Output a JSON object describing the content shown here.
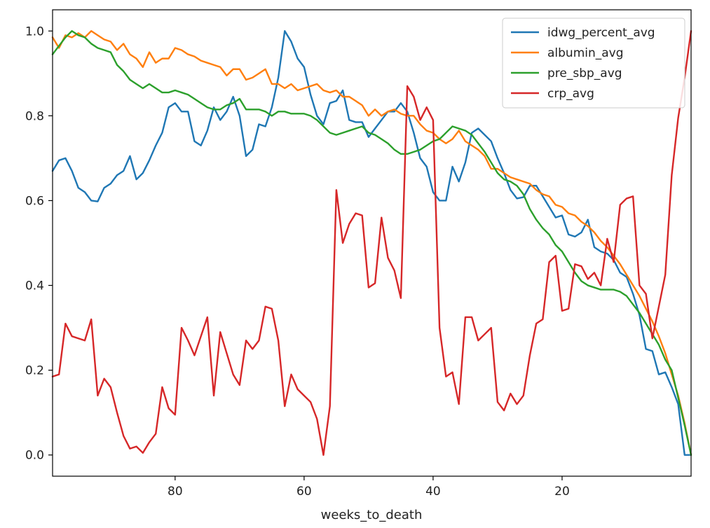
{
  "chart_data": {
    "type": "line",
    "title": "",
    "xlabel": "weeks_to_death",
    "ylabel": "",
    "xlim": [
      99,
      0
    ],
    "ylim": [
      -0.05,
      1.05
    ],
    "x_inverted": true,
    "xticks": [
      80,
      60,
      40,
      20
    ],
    "yticks": [
      0.0,
      0.2,
      0.4,
      0.6,
      0.8,
      1.0
    ],
    "xtick_labels": [
      "80",
      "60",
      "40",
      "20"
    ],
    "ytick_labels": [
      "0.0",
      "0.2",
      "0.4",
      "0.6",
      "0.8",
      "1.0"
    ],
    "grid": false,
    "legend_position": "upper right",
    "x": [
      99,
      98,
      97,
      96,
      95,
      94,
      93,
      92,
      91,
      90,
      89,
      88,
      87,
      86,
      85,
      84,
      83,
      82,
      81,
      80,
      79,
      78,
      77,
      76,
      75,
      74,
      73,
      72,
      71,
      70,
      69,
      68,
      67,
      66,
      65,
      64,
      63,
      62,
      61,
      60,
      59,
      58,
      57,
      56,
      55,
      54,
      53,
      52,
      51,
      50,
      49,
      48,
      47,
      46,
      45,
      44,
      43,
      42,
      41,
      40,
      39,
      38,
      37,
      36,
      35,
      34,
      33,
      32,
      31,
      30,
      29,
      28,
      27,
      26,
      25,
      24,
      23,
      22,
      21,
      20,
      19,
      18,
      17,
      16,
      15,
      14,
      13,
      12,
      11,
      10,
      9,
      8,
      7,
      6,
      5,
      4,
      3,
      2,
      1,
      0
    ],
    "series": [
      {
        "name": "idwg_percent_avg",
        "color": "#1f77b4",
        "values": [
          0.67,
          0.695,
          0.7,
          0.67,
          0.63,
          0.62,
          0.6,
          0.598,
          0.63,
          0.64,
          0.66,
          0.67,
          0.705,
          0.65,
          0.665,
          0.695,
          0.73,
          0.76,
          0.82,
          0.83,
          0.81,
          0.81,
          0.74,
          0.73,
          0.765,
          0.82,
          0.79,
          0.81,
          0.845,
          0.8,
          0.705,
          0.72,
          0.78,
          0.775,
          0.82,
          0.89,
          1.0,
          0.975,
          0.935,
          0.915,
          0.85,
          0.8,
          0.78,
          0.83,
          0.835,
          0.86,
          0.79,
          0.785,
          0.785,
          0.75,
          0.77,
          0.79,
          0.81,
          0.81,
          0.83,
          0.81,
          0.76,
          0.7,
          0.68,
          0.62,
          0.6,
          0.6,
          0.68,
          0.645,
          0.69,
          0.76,
          0.77,
          0.755,
          0.74,
          0.7,
          0.665,
          0.625,
          0.605,
          0.608,
          0.635,
          0.635,
          0.61,
          0.585,
          0.56,
          0.565,
          0.52,
          0.515,
          0.525,
          0.555,
          0.49,
          0.48,
          0.475,
          0.46,
          0.43,
          0.42,
          0.38,
          0.33,
          0.25,
          0.245,
          0.19,
          0.195,
          0.16,
          0.12,
          0.0,
          0.0
        ]
      },
      {
        "name": "albumin_avg",
        "color": "#ff7f0e",
        "values": [
          0.985,
          0.96,
          0.99,
          0.985,
          0.995,
          0.985,
          1.0,
          0.99,
          0.98,
          0.975,
          0.955,
          0.97,
          0.945,
          0.935,
          0.915,
          0.95,
          0.925,
          0.935,
          0.935,
          0.96,
          0.955,
          0.945,
          0.94,
          0.93,
          0.925,
          0.92,
          0.915,
          0.895,
          0.91,
          0.91,
          0.885,
          0.89,
          0.9,
          0.91,
          0.875,
          0.875,
          0.865,
          0.875,
          0.86,
          0.865,
          0.87,
          0.875,
          0.86,
          0.855,
          0.86,
          0.845,
          0.845,
          0.835,
          0.825,
          0.8,
          0.815,
          0.8,
          0.81,
          0.815,
          0.805,
          0.8,
          0.8,
          0.78,
          0.765,
          0.76,
          0.745,
          0.735,
          0.745,
          0.765,
          0.74,
          0.73,
          0.72,
          0.705,
          0.675,
          0.675,
          0.665,
          0.655,
          0.65,
          0.645,
          0.64,
          0.625,
          0.615,
          0.61,
          0.59,
          0.585,
          0.57,
          0.565,
          0.55,
          0.54,
          0.525,
          0.505,
          0.49,
          0.47,
          0.45,
          0.425,
          0.4,
          0.375,
          0.345,
          0.315,
          0.28,
          0.24,
          0.19,
          0.14,
          0.075,
          0.0
        ]
      },
      {
        "name": "pre_sbp_avg",
        "color": "#2ca02c",
        "values": [
          0.945,
          0.965,
          0.985,
          1.0,
          0.99,
          0.985,
          0.97,
          0.96,
          0.955,
          0.95,
          0.92,
          0.905,
          0.885,
          0.875,
          0.865,
          0.875,
          0.865,
          0.855,
          0.855,
          0.86,
          0.855,
          0.85,
          0.84,
          0.83,
          0.82,
          0.815,
          0.815,
          0.825,
          0.83,
          0.84,
          0.815,
          0.815,
          0.815,
          0.81,
          0.8,
          0.81,
          0.81,
          0.805,
          0.805,
          0.805,
          0.8,
          0.79,
          0.775,
          0.76,
          0.755,
          0.76,
          0.765,
          0.77,
          0.775,
          0.76,
          0.755,
          0.745,
          0.735,
          0.72,
          0.71,
          0.71,
          0.715,
          0.72,
          0.73,
          0.74,
          0.745,
          0.76,
          0.775,
          0.77,
          0.765,
          0.755,
          0.735,
          0.715,
          0.69,
          0.665,
          0.65,
          0.645,
          0.635,
          0.615,
          0.58,
          0.555,
          0.535,
          0.52,
          0.495,
          0.48,
          0.455,
          0.43,
          0.41,
          0.4,
          0.395,
          0.39,
          0.39,
          0.39,
          0.385,
          0.375,
          0.355,
          0.335,
          0.31,
          0.285,
          0.26,
          0.225,
          0.2,
          0.135,
          0.07,
          0.0
        ]
      },
      {
        "name": "crp_avg",
        "color": "#d62728",
        "values": [
          0.185,
          0.19,
          0.31,
          0.28,
          0.275,
          0.27,
          0.32,
          0.14,
          0.18,
          0.16,
          0.1,
          0.045,
          0.015,
          0.02,
          0.005,
          0.03,
          0.05,
          0.16,
          0.11,
          0.095,
          0.3,
          0.27,
          0.235,
          0.28,
          0.325,
          0.14,
          0.29,
          0.24,
          0.19,
          0.165,
          0.27,
          0.25,
          0.27,
          0.35,
          0.345,
          0.27,
          0.115,
          0.19,
          0.155,
          0.14,
          0.125,
          0.085,
          0.0,
          0.115,
          0.625,
          0.5,
          0.545,
          0.57,
          0.565,
          0.395,
          0.405,
          0.56,
          0.465,
          0.435,
          0.37,
          0.87,
          0.845,
          0.79,
          0.82,
          0.79,
          0.3,
          0.185,
          0.195,
          0.12,
          0.325,
          0.325,
          0.27,
          0.285,
          0.3,
          0.125,
          0.105,
          0.145,
          0.12,
          0.14,
          0.235,
          0.31,
          0.32,
          0.455,
          0.47,
          0.34,
          0.345,
          0.45,
          0.445,
          0.415,
          0.43,
          0.4,
          0.51,
          0.455,
          0.59,
          0.605,
          0.61,
          0.4,
          0.38,
          0.275,
          0.35,
          0.425,
          0.66,
          0.795,
          0.89,
          1.0
        ]
      }
    ]
  }
}
